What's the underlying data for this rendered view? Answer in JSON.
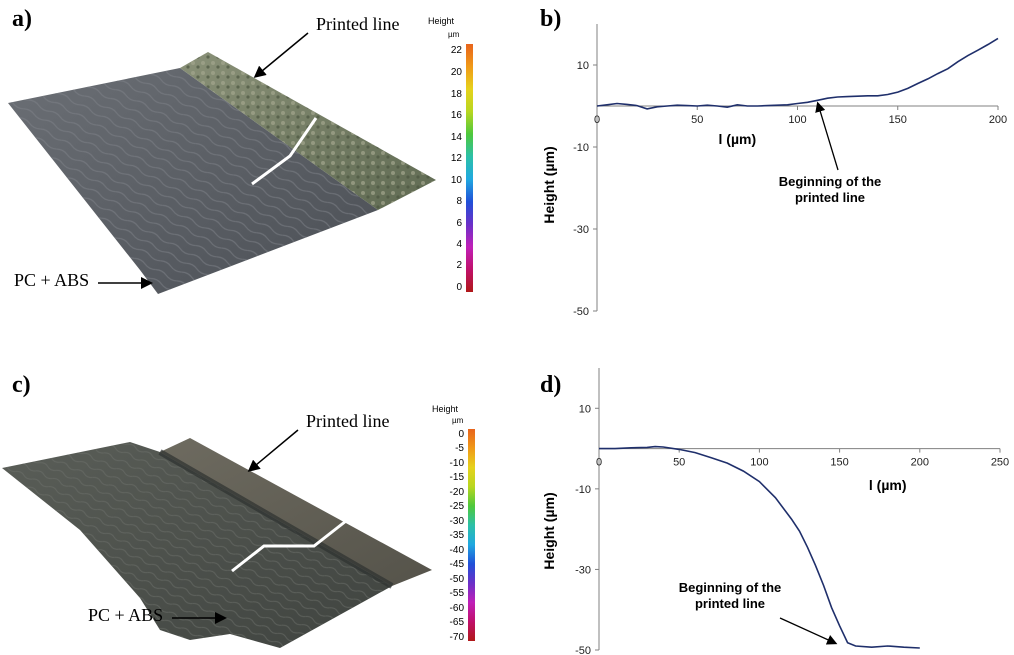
{
  "panels": {
    "a": {
      "label": "a)",
      "printed_line": "Printed line",
      "substrate": "PC + ABS",
      "colorbar": {
        "title": "Height",
        "unit": "µm",
        "ticks": [
          "22",
          "20",
          "18",
          "16",
          "14",
          "12",
          "10",
          "8",
          "6",
          "4",
          "2",
          "0"
        ]
      }
    },
    "b": {
      "label": "b)"
    },
    "c": {
      "label": "c)",
      "printed_line": "Printed line",
      "substrate": "PC + ABS",
      "colorbar": {
        "title": "Height",
        "unit": "µm",
        "ticks": [
          "0",
          "-5",
          "-10",
          "-15",
          "-20",
          "-25",
          "-30",
          "-35",
          "-40",
          "-45",
          "-50",
          "-55",
          "-60",
          "-65",
          "-70"
        ]
      }
    },
    "d": {
      "label": "d)"
    }
  },
  "chart_data": [
    {
      "type": "line",
      "panel": "b)",
      "xlabel": "l (µm)",
      "ylabel": "Height (µm)",
      "xlim": [
        0,
        200
      ],
      "ylim": [
        -50,
        20
      ],
      "xticks": [
        0,
        50,
        100,
        150,
        200
      ],
      "yticks": [
        10,
        -10,
        -30,
        -50
      ],
      "annotation": "Beginning of the\nprinted line",
      "annotation_x": 110,
      "series": [
        {
          "color": "#1f2f6b",
          "x": [
            0,
            5,
            10,
            15,
            20,
            25,
            30,
            35,
            40,
            45,
            50,
            55,
            60,
            65,
            70,
            75,
            80,
            85,
            90,
            95,
            100,
            105,
            110,
            115,
            120,
            125,
            130,
            135,
            140,
            145,
            150,
            155,
            160,
            165,
            170,
            175,
            180,
            185,
            190,
            195,
            200
          ],
          "y": [
            0.0,
            0.3,
            0.6,
            0.4,
            0.1,
            -0.7,
            -0.2,
            0.0,
            0.2,
            0.1,
            0.0,
            0.2,
            0.0,
            -0.3,
            0.3,
            0.0,
            0.0,
            0.1,
            0.2,
            0.3,
            0.6,
            0.9,
            1.4,
            1.9,
            2.2,
            2.3,
            2.4,
            2.5,
            2.5,
            2.8,
            3.4,
            4.3,
            5.5,
            6.6,
            7.9,
            9.1,
            10.8,
            12.3,
            13.6,
            15.0,
            16.5
          ]
        }
      ]
    },
    {
      "type": "line",
      "panel": "d)",
      "xlabel": "l (µm)",
      "ylabel": "Height (µm)",
      "xlim": [
        0,
        250
      ],
      "ylim": [
        -50,
        20
      ],
      "xticks": [
        0,
        50,
        100,
        150,
        200,
        250
      ],
      "yticks": [
        10,
        -10,
        -30,
        -50
      ],
      "annotation": "Beginning of the\nprinted line",
      "annotation_x": 148,
      "series": [
        {
          "color": "#1f2f6b",
          "x": [
            0,
            10,
            20,
            30,
            35,
            40,
            50,
            60,
            70,
            80,
            90,
            100,
            110,
            120,
            125,
            130,
            135,
            140,
            145,
            150,
            155,
            160,
            170,
            180,
            190,
            200
          ],
          "y": [
            0.0,
            0.0,
            0.2,
            0.3,
            0.5,
            0.4,
            -0.2,
            -1.0,
            -2.3,
            -3.6,
            -5.6,
            -8.2,
            -12.2,
            -17.5,
            -20.5,
            -24.5,
            -29.0,
            -34.0,
            -39.5,
            -44.0,
            -48.2,
            -49.0,
            -49.3,
            -49.0,
            -49.3,
            -49.5
          ]
        }
      ]
    }
  ]
}
